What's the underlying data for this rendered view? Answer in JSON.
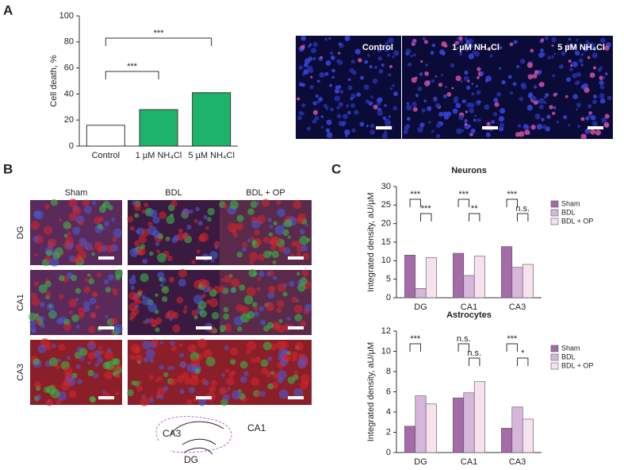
{
  "panel_labels": [
    "A",
    "B",
    "C"
  ],
  "chart_data": [
    {
      "type": "bar",
      "y_label": "Cell death, %",
      "categories": [
        "Control",
        "1 µM NH₄Cl",
        "5 µM NH₄Cl"
      ],
      "values": [
        16,
        28,
        41
      ],
      "colors": [
        "#ffffff",
        "#1db36b",
        "#1db36b"
      ],
      "ylim": [
        0,
        100
      ],
      "yticks": [
        0,
        20,
        40,
        60,
        80,
        100
      ],
      "significance": [
        "***",
        "***"
      ]
    },
    {
      "type": "grouped_bar",
      "title": "Neurons",
      "y_label": "Integrated density, aU/µM",
      "categories": [
        "DG",
        "CA1",
        "CA3"
      ],
      "series": [
        {
          "name": "Sham",
          "color": "#a56aa8",
          "values": [
            11.5,
            12,
            13.8
          ]
        },
        {
          "name": "BDL",
          "color": "#d8b6db",
          "values": [
            2.5,
            6,
            8.2
          ]
        },
        {
          "name": "BDL + OP",
          "color": "#f6e2ef",
          "values": [
            10.8,
            11.2,
            9
          ]
        }
      ],
      "ylim": [
        0,
        30
      ],
      "yticks": [
        0,
        5,
        10,
        15,
        20,
        25,
        30
      ],
      "significance": [
        [
          "***",
          "***"
        ],
        [
          "***",
          "**"
        ],
        [
          "***",
          "n.s."
        ]
      ]
    },
    {
      "type": "grouped_bar",
      "title": "Astrocytes",
      "y_label": "Integrated density, aU/µM",
      "categories": [
        "DG",
        "CA1",
        "CA3"
      ],
      "series": [
        {
          "name": "Sham",
          "color": "#a56aa8",
          "values": [
            2.6,
            5.4,
            2.4
          ]
        },
        {
          "name": "BDL",
          "color": "#d8b6db",
          "values": [
            5.6,
            5.9,
            4.5
          ]
        },
        {
          "name": "BDL + OP",
          "color": "#f6e2ef",
          "values": [
            4.8,
            7.0,
            3.3
          ]
        }
      ],
      "ylim": [
        0,
        12
      ],
      "yticks": [
        0,
        2,
        4,
        6,
        8,
        10,
        12
      ],
      "significance": [
        [
          "***"
        ],
        [
          "n.s.",
          "n.s."
        ],
        [
          "***",
          "*"
        ]
      ]
    }
  ],
  "micrographs": {
    "labels": [
      "Control",
      "1 µM NH₄Cl",
      "5 µM NH₄Cl"
    ]
  },
  "panel_b": {
    "columns": [
      "Sham",
      "BDL",
      "BDL + OP"
    ],
    "rows": [
      "DG",
      "CA1",
      "CA3"
    ],
    "diagram": [
      "CA3",
      "CA1",
      "DG"
    ]
  }
}
